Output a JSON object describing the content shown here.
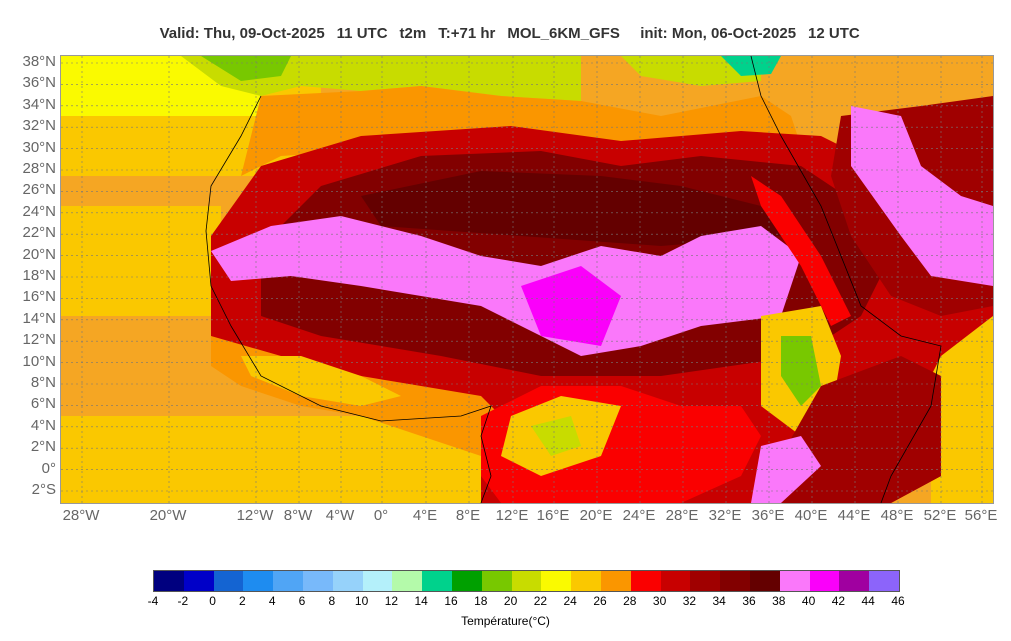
{
  "header": {
    "valid": "Valid: Thu, 09-Oct-2025",
    "utc": "11 UTC",
    "var": "t2m",
    "lead": "T:+71 hr",
    "model": "MOL_6KM_GFS",
    "init": "init: Mon, 06-Oct-2025",
    "init_utc": "12 UTC"
  },
  "latitude_labels": [
    "38°N",
    "36°N",
    "34°N",
    "32°N",
    "30°N",
    "28°N",
    "26°N",
    "24°N",
    "22°N",
    "20°N",
    "18°N",
    "16°N",
    "14°N",
    "12°N",
    "10°N",
    "8°N",
    "6°N",
    "4°N",
    "2°N",
    "0°",
    "2°S"
  ],
  "longitude_labels": [
    "28°W",
    "20°W",
    "12°W",
    "8°W",
    "4°W",
    "0°",
    "4°E",
    "8°E",
    "12°E",
    "16°E",
    "20°E",
    "24°E",
    "28°E",
    "32°E",
    "36°E",
    "40°E",
    "44°E",
    "48°E",
    "52°E",
    "56°E"
  ],
  "colorbar": {
    "ticks": [
      "-4",
      "-2",
      "0",
      "2",
      "4",
      "6",
      "8",
      "10",
      "12",
      "14",
      "16",
      "18",
      "20",
      "22",
      "24",
      "26",
      "28",
      "30",
      "32",
      "34",
      "36",
      "38",
      "40",
      "42",
      "44",
      "46"
    ],
    "colors": [
      "#00007f",
      "#0000c8",
      "#1464d2",
      "#1e8cf0",
      "#50a5f5",
      "#78b9fa",
      "#96d2fa",
      "#b4f0fa",
      "#b4faaa",
      "#00d28c",
      "#00a000",
      "#78c800",
      "#c8dc00",
      "#fafa00",
      "#fac800",
      "#fa9600",
      "#fa0000",
      "#c80000",
      "#a00000",
      "#820000",
      "#640000",
      "#fa78fa",
      "#fa00fa",
      "#a000a0",
      "#8c64fa"
    ],
    "label": "Température(°C)"
  },
  "palette": {
    "ocean_warm": "#f5a623",
    "ocean_mid": "#fac800",
    "ocean_cool": "#fafa00",
    "green": "#c8dc00",
    "hot_1": "#fa0000",
    "hot_2": "#c80000",
    "hot_3": "#a00000",
    "hot_4": "#820000",
    "extreme": "#fa78fa",
    "extreme_2": "#fa00fa"
  }
}
